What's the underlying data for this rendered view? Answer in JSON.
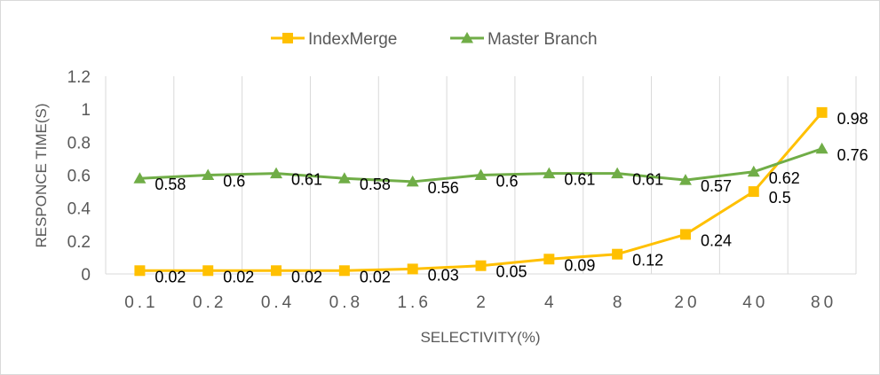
{
  "chart_data": {
    "type": "line",
    "categories": [
      "0.1",
      "0.2",
      "0.4",
      "0.8",
      "1.6",
      "2",
      "4",
      "8",
      "20",
      "40",
      "80"
    ],
    "series": [
      {
        "name": "IndexMerge",
        "values": [
          0.02,
          0.02,
          0.02,
          0.02,
          0.03,
          0.05,
          0.09,
          0.12,
          0.24,
          0.5,
          0.98
        ],
        "labels": [
          "0.02",
          "0.02",
          "0.02",
          "0.02",
          "0.03",
          "0.05",
          "0.09",
          "0.12",
          "0.24",
          "0.5",
          "0.98"
        ],
        "color": "#FFC000",
        "marker": "square"
      },
      {
        "name": "Master Branch",
        "values": [
          0.58,
          0.6,
          0.61,
          0.58,
          0.56,
          0.6,
          0.61,
          0.61,
          0.57,
          0.62,
          0.76
        ],
        "labels": [
          "0.58",
          "0.6",
          "0.61",
          "0.58",
          "0.56",
          "0.6",
          "0.61",
          "0.61",
          "0.57",
          "0.62",
          "0.76"
        ],
        "color": "#70AD47",
        "marker": "triangle"
      }
    ],
    "xlabel": "SELECTIVITY(%)",
    "ylabel": "RESPONCE TIME(S)",
    "ylim": [
      0,
      1.2
    ],
    "yticks": [
      "0",
      "0.2",
      "0.4",
      "0.6",
      "0.8",
      "1",
      "1.2"
    ],
    "grid": "vertical",
    "legend": "top-center",
    "gridline_color": "#D9D9D9"
  }
}
